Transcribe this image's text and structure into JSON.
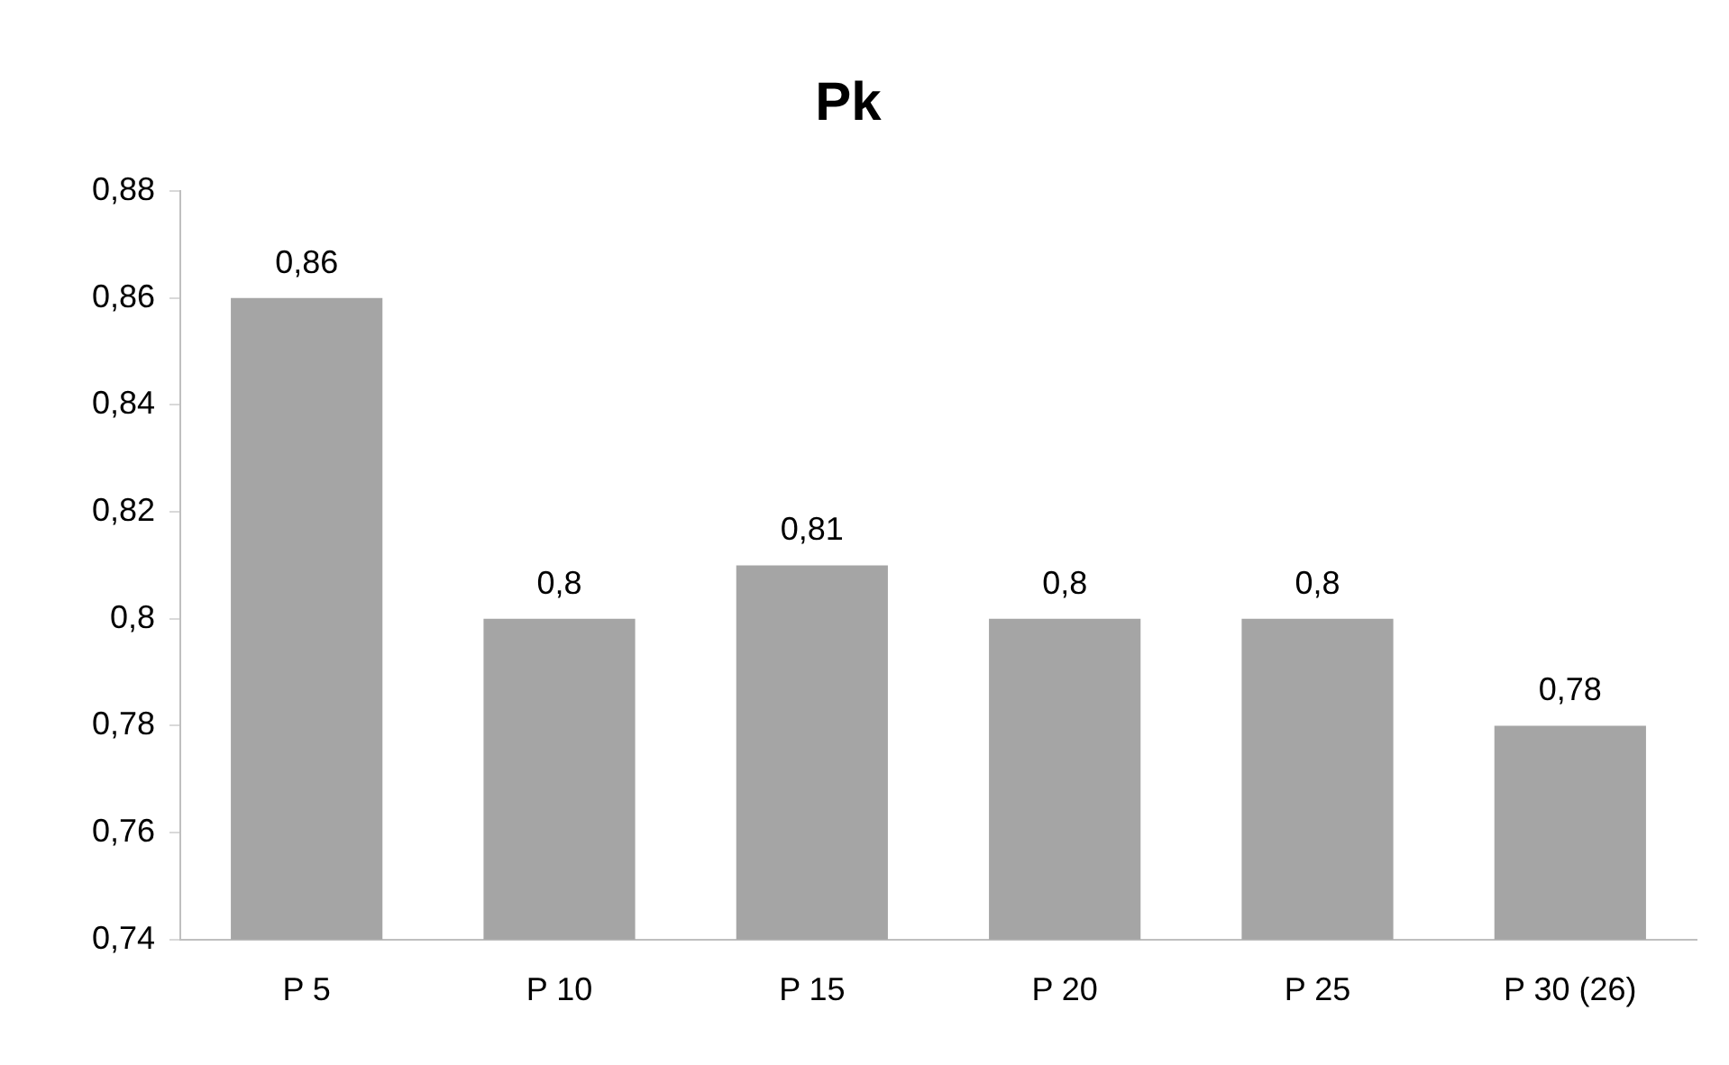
{
  "chart_data": {
    "type": "bar",
    "title": "Pk",
    "categories": [
      "P 5",
      "P 10",
      "P 15",
      "P 20",
      "P 25",
      "P 30 (26)"
    ],
    "values": [
      0.86,
      0.8,
      0.81,
      0.8,
      0.8,
      0.78
    ],
    "value_labels": [
      "0,86",
      "0,8",
      "0,81",
      "0,8",
      "0,8",
      "0,78"
    ],
    "color": "#a5a5a5",
    "ylim": [
      0.74,
      0.88
    ],
    "yticks": [
      {
        "value": 0.74,
        "label": "0,74"
      },
      {
        "value": 0.76,
        "label": "0,76"
      },
      {
        "value": 0.78,
        "label": "0,78"
      },
      {
        "value": 0.8,
        "label": "0,8"
      },
      {
        "value": 0.82,
        "label": "0,82"
      },
      {
        "value": 0.84,
        "label": "0,84"
      },
      {
        "value": 0.86,
        "label": "0,86"
      },
      {
        "value": 0.88,
        "label": "0,88"
      }
    ],
    "grid": false,
    "legend": false
  }
}
